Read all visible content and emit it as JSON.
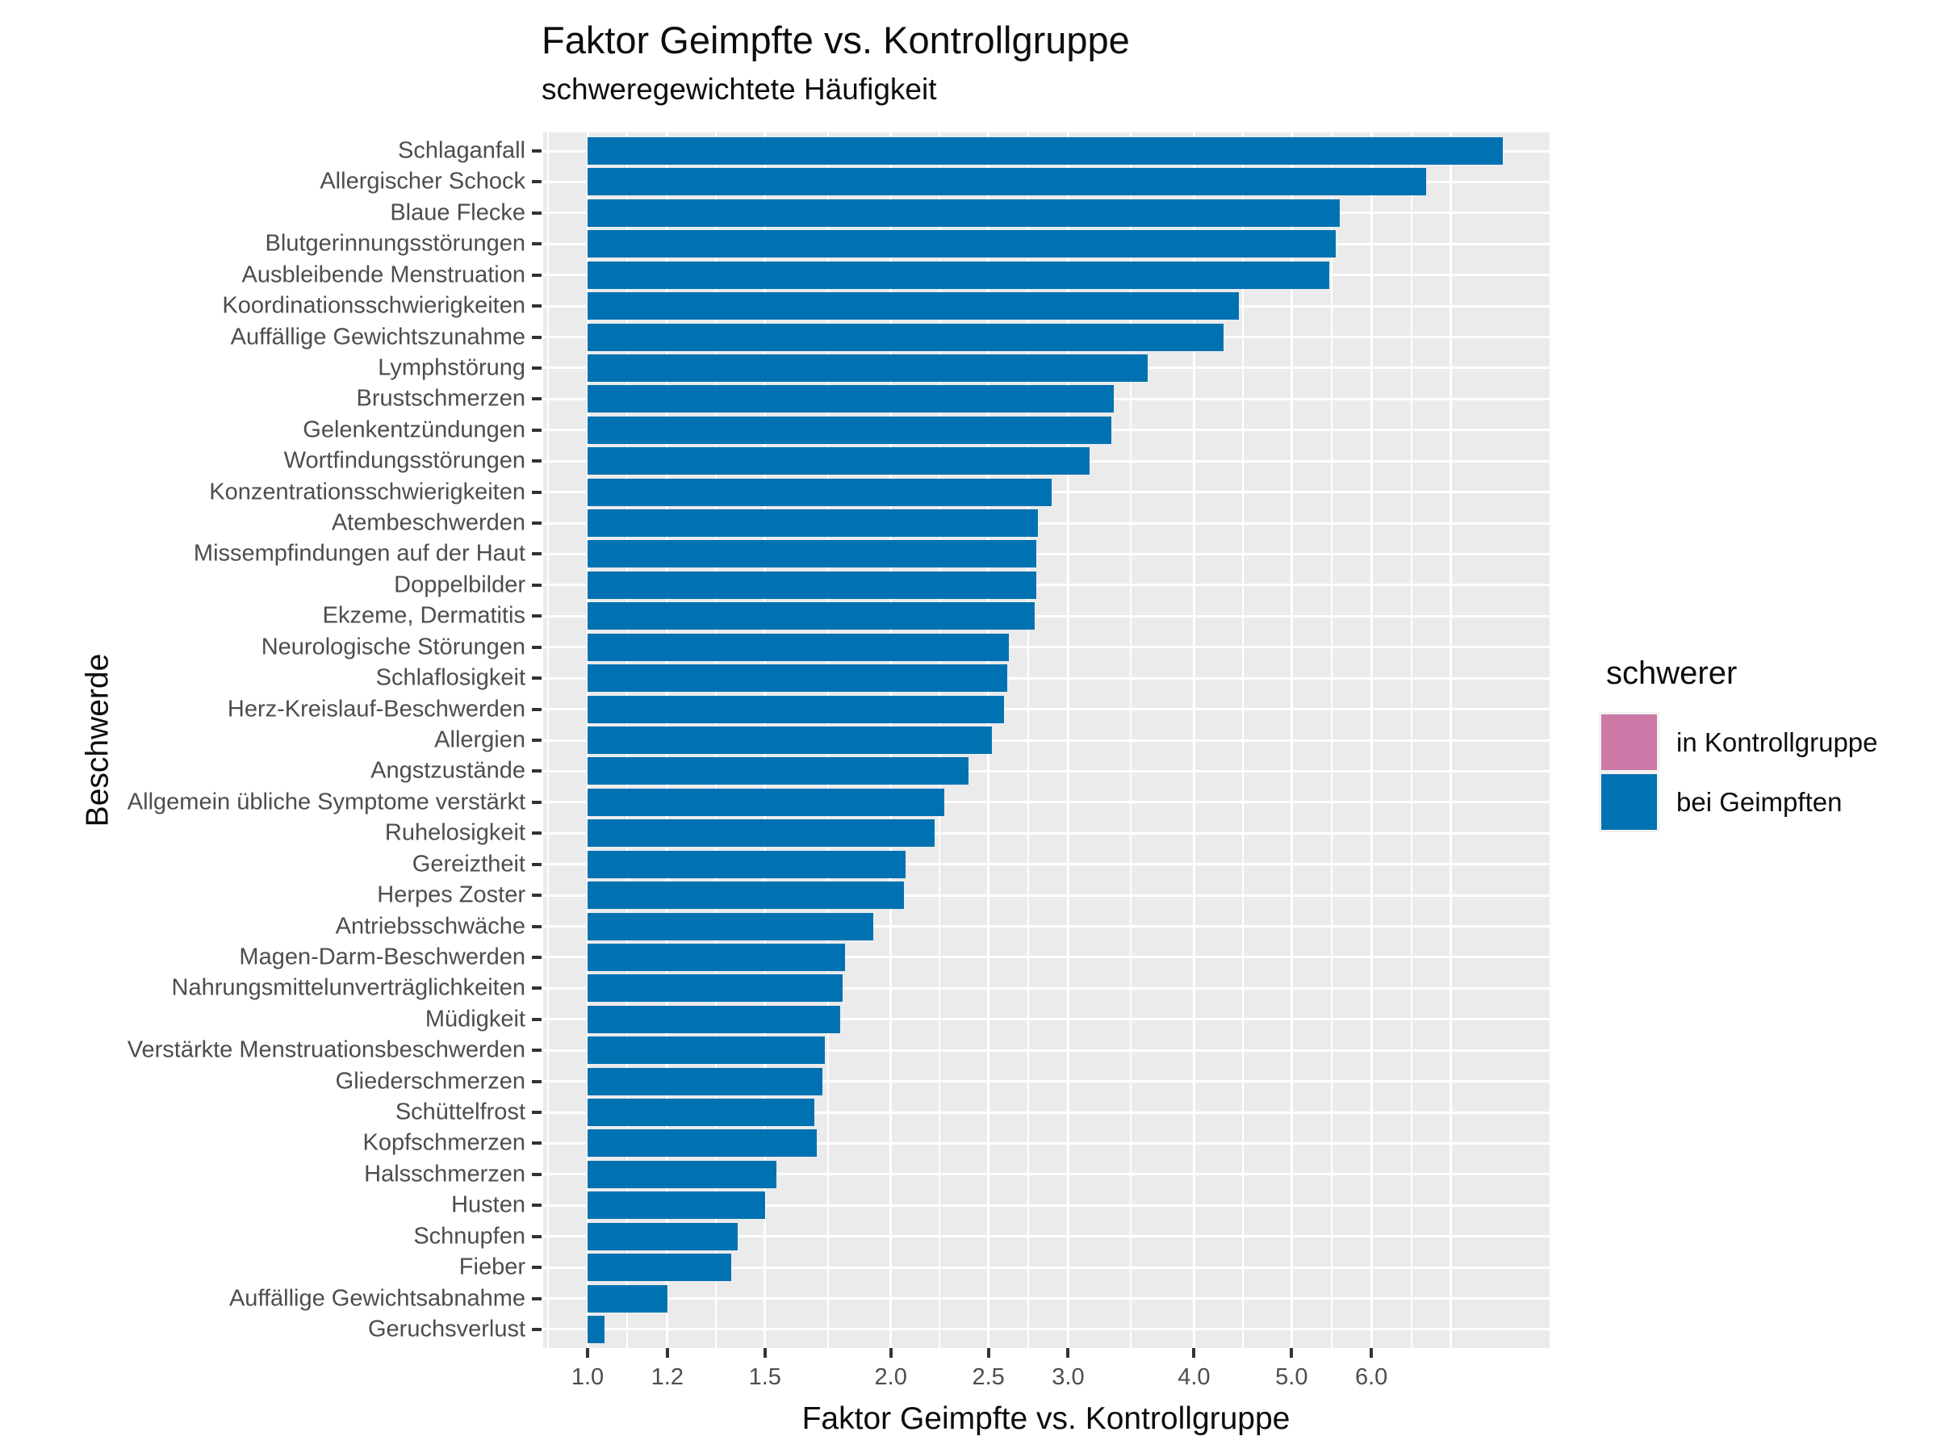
{
  "title": "Faktor Geimpfte vs. Kontrollgruppe",
  "subtitle": "schweregewichtete Häufigkeit",
  "x_axis_title": "Faktor Geimpfte vs. Kontrollgruppe",
  "y_axis_title": "Beschwerde",
  "legend": {
    "title": "schwerer",
    "items": [
      {
        "label": "in Kontrollgruppe",
        "color": "#CC79A7"
      },
      {
        "label": "bei Geimpften",
        "color": "#0072B2"
      }
    ]
  },
  "chart_data": {
    "type": "bar",
    "orientation": "horizontal",
    "x_scale": "log10",
    "title": "Faktor Geimpfte vs. Kontrollgruppe",
    "subtitle": "schweregewichtete Häufigkeit",
    "xlabel": "Faktor Geimpfte vs. Kontrollgruppe",
    "ylabel": "Beschwerde",
    "xlim": [
      0.904,
      9.0
    ],
    "bar_start": 1.0,
    "bar_color": "#0072B2",
    "series_name": "bei Geimpften",
    "panel_background": "#EBEBEB",
    "grid_color": "#FFFFFF",
    "x_ticks": [
      1.0,
      1.2,
      1.5,
      2.0,
      2.5,
      3.0,
      4.0,
      5.0,
      6.0
    ],
    "x_tick_labels": [
      "1.0",
      "1.2",
      "1.5",
      "2.0",
      "2.5",
      "3.0",
      "4.0",
      "5.0",
      "6.0"
    ],
    "unlabeled_major_gridlines": [
      7.2
    ],
    "minor_gridlines": [
      0.913,
      1.095,
      1.342,
      1.732,
      2.236,
      2.739,
      3.464,
      4.472,
      5.477,
      6.573
    ],
    "categories": [
      "Schlaganfall",
      "Allergischer Schock",
      "Blaue Flecke",
      "Blutgerinnungsstörungen",
      "Ausbleibende Menstruation",
      "Koordinationsschwierigkeiten",
      "Auffällige Gewichtszunahme",
      "Lymphstörung",
      "Brustschmerzen",
      "Gelenkentzündungen",
      "Wortfindungsstörungen",
      "Konzentrationsschwierigkeiten",
      "Atembeschwerden",
      "Missempfindungen auf der Haut",
      "Doppelbilder",
      "Ekzeme, Dermatitis",
      "Neurologische Störungen",
      "Schlaflosigkeit",
      "Herz-Kreislauf-Beschwerden",
      "Allergien",
      "Angstzustände",
      "Allgemein übliche Symptome verstärkt",
      "Ruhelosigkeit",
      "Gereiztheit",
      "Herpes Zoster",
      "Antriebsschwäche",
      "Magen-Darm-Beschwerden",
      "Nahrungsmittelunverträglichkeiten",
      "Müdigkeit",
      "Verstärkte Menstruationsbeschwerden",
      "Gliederschmerzen",
      "Schüttelfrost",
      "Kopfschmerzen",
      "Halsschmerzen",
      "Husten",
      "Schnupfen",
      "Fieber",
      "Auffällige Gewichtsabnahme",
      "Geruchsverlust"
    ],
    "values": [
      8.1,
      6.8,
      5.58,
      5.53,
      5.45,
      4.43,
      4.28,
      3.6,
      3.33,
      3.31,
      3.15,
      2.89,
      2.8,
      2.79,
      2.79,
      2.78,
      2.62,
      2.61,
      2.59,
      2.52,
      2.39,
      2.26,
      2.21,
      2.07,
      2.06,
      1.92,
      1.8,
      1.79,
      1.78,
      1.72,
      1.71,
      1.68,
      1.69,
      1.54,
      1.5,
      1.41,
      1.39,
      1.2,
      1.04
    ]
  }
}
